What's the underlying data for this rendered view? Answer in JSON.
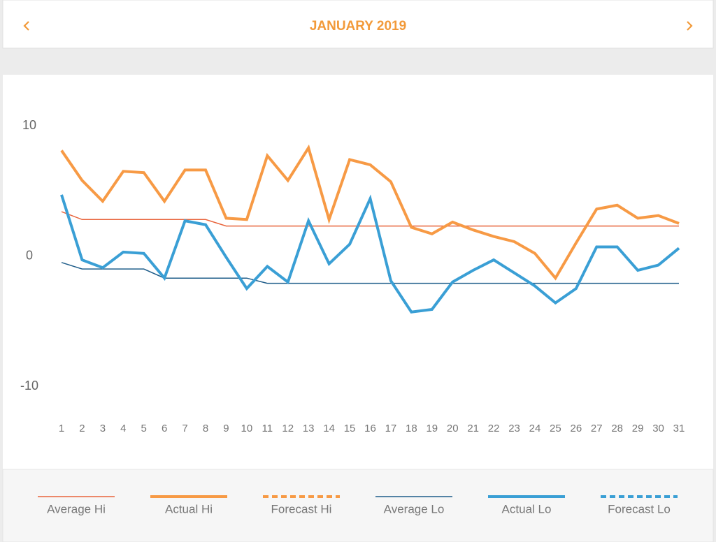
{
  "header": {
    "title": "JANUARY 2019"
  },
  "chart_data": {
    "type": "line",
    "x": [
      1,
      2,
      3,
      4,
      5,
      6,
      7,
      8,
      9,
      10,
      11,
      12,
      13,
      14,
      15,
      16,
      17,
      18,
      19,
      20,
      21,
      22,
      23,
      24,
      25,
      26,
      27,
      28,
      29,
      30,
      31
    ],
    "xlim": [
      1,
      31
    ],
    "xticks": [
      1,
      2,
      3,
      4,
      5,
      6,
      7,
      8,
      9,
      10,
      11,
      12,
      13,
      14,
      15,
      16,
      17,
      18,
      19,
      20,
      21,
      22,
      23,
      24,
      25,
      26,
      27,
      28,
      29,
      30,
      31
    ],
    "ylim": [
      -10,
      10
    ],
    "yticks": [
      -10,
      0,
      10
    ],
    "grid": false,
    "legend": "bottom",
    "series": [
      {
        "name": "Average Hi",
        "color": "#e8643c",
        "width": 1.5,
        "style": "solid",
        "values": [
          3.4,
          2.8,
          2.8,
          2.8,
          2.8,
          2.8,
          2.8,
          2.8,
          2.3,
          2.3,
          2.3,
          2.3,
          2.3,
          2.3,
          2.3,
          2.3,
          2.3,
          2.3,
          2.3,
          2.3,
          2.3,
          2.3,
          2.3,
          2.3,
          2.3,
          2.3,
          2.3,
          2.3,
          2.3,
          2.3,
          2.3
        ]
      },
      {
        "name": "Actual Hi",
        "color": "#f79a45",
        "width": 4,
        "style": "solid",
        "values": [
          8.1,
          5.8,
          4.2,
          6.5,
          6.4,
          4.2,
          6.6,
          6.6,
          2.9,
          2.8,
          7.7,
          5.8,
          8.3,
          2.8,
          7.4,
          7.0,
          5.7,
          2.2,
          1.7,
          2.6,
          2.0,
          1.5,
          1.1,
          0.2,
          -1.7,
          1.0,
          3.6,
          3.9,
          2.9,
          3.1,
          2.5
        ]
      },
      {
        "name": "Forecast Hi",
        "color": "#f79a45",
        "width": 4,
        "style": "dashed",
        "values": [
          null,
          null,
          null,
          null,
          null,
          null,
          null,
          null,
          null,
          null,
          null,
          null,
          null,
          null,
          null,
          null,
          null,
          null,
          null,
          null,
          null,
          null,
          null,
          null,
          null,
          null,
          null,
          null,
          null,
          null,
          null
        ]
      },
      {
        "name": "Average Lo",
        "color": "#1f5d8a",
        "width": 1.5,
        "style": "solid",
        "values": [
          -0.5,
          -1.0,
          -1.0,
          -1.0,
          -1.0,
          -1.7,
          -1.7,
          -1.7,
          -1.7,
          -1.7,
          -2.1,
          -2.1,
          -2.1,
          -2.1,
          -2.1,
          -2.1,
          -2.1,
          -2.1,
          -2.1,
          -2.1,
          -2.1,
          -2.1,
          -2.1,
          -2.1,
          -2.1,
          -2.1,
          -2.1,
          -2.1,
          -2.1,
          -2.1,
          -2.1
        ]
      },
      {
        "name": "Actual Lo",
        "color": "#3a9fd5",
        "width": 4,
        "style": "solid",
        "values": [
          4.7,
          -0.3,
          -0.9,
          0.3,
          0.2,
          -1.7,
          2.7,
          2.4,
          -0.1,
          -2.5,
          -0.8,
          -2.0,
          2.7,
          -0.6,
          0.9,
          4.4,
          -1.9,
          -4.3,
          -4.1,
          -2.0,
          -1.1,
          -0.3,
          -1.3,
          -2.3,
          -3.6,
          -2.5,
          0.7,
          0.7,
          -1.1,
          -0.7,
          0.6
        ]
      },
      {
        "name": "Forecast Lo",
        "color": "#3a9fd5",
        "width": 4,
        "style": "dashed",
        "values": [
          null,
          null,
          null,
          null,
          null,
          null,
          null,
          null,
          null,
          null,
          null,
          null,
          null,
          null,
          null,
          null,
          null,
          null,
          null,
          null,
          null,
          null,
          null,
          null,
          null,
          null,
          null,
          null,
          null,
          null,
          null
        ]
      }
    ]
  }
}
